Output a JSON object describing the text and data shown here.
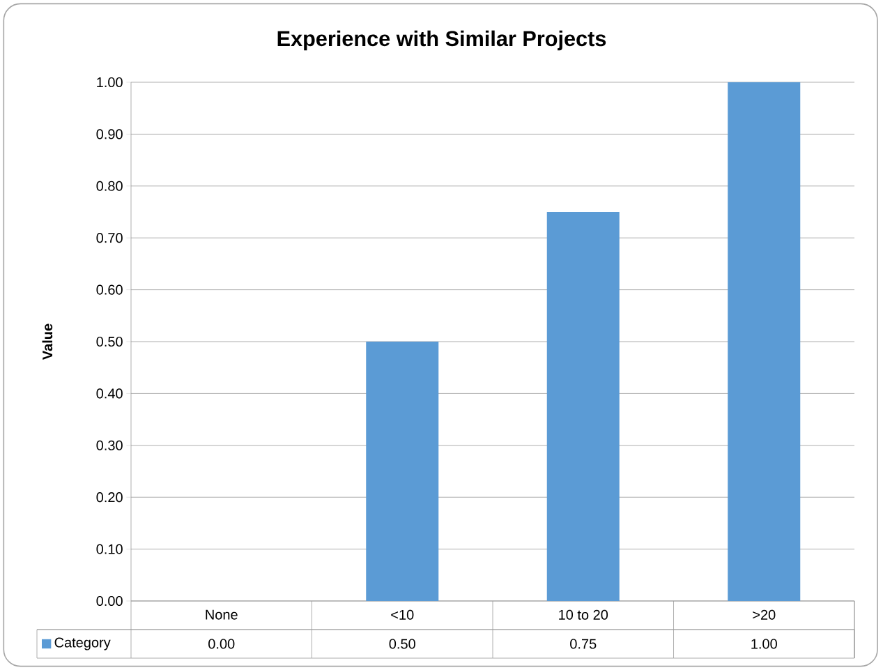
{
  "chart_data": {
    "type": "bar",
    "title": "Experience with Similar Projects",
    "ylabel": "Value",
    "categories": [
      "None",
      "<10",
      "10 to 20",
      ">20"
    ],
    "series": [
      {
        "name": "Category",
        "color": "#5b9bd5",
        "values": [
          0,
          0.5,
          0.75,
          1
        ]
      }
    ],
    "value_labels": [
      "0.00",
      "0.50",
      "0.75",
      "1.00"
    ],
    "ylim": [
      0,
      1
    ],
    "yticks": [
      {
        "value": 0,
        "label": "0.00"
      },
      {
        "value": 0.1,
        "label": "0.10"
      },
      {
        "value": 0.2,
        "label": "0.20"
      },
      {
        "value": 0.3,
        "label": "0.30"
      },
      {
        "value": 0.4,
        "label": "0.40"
      },
      {
        "value": 0.5,
        "label": "0.50"
      },
      {
        "value": 0.6,
        "label": "0.60"
      },
      {
        "value": 0.7,
        "label": "0.70"
      },
      {
        "value": 0.8,
        "label": "0.80"
      },
      {
        "value": 0.9,
        "label": "0.90"
      },
      {
        "value": 1,
        "label": "1.00"
      }
    ],
    "grid": "y",
    "legend": "bottom"
  }
}
